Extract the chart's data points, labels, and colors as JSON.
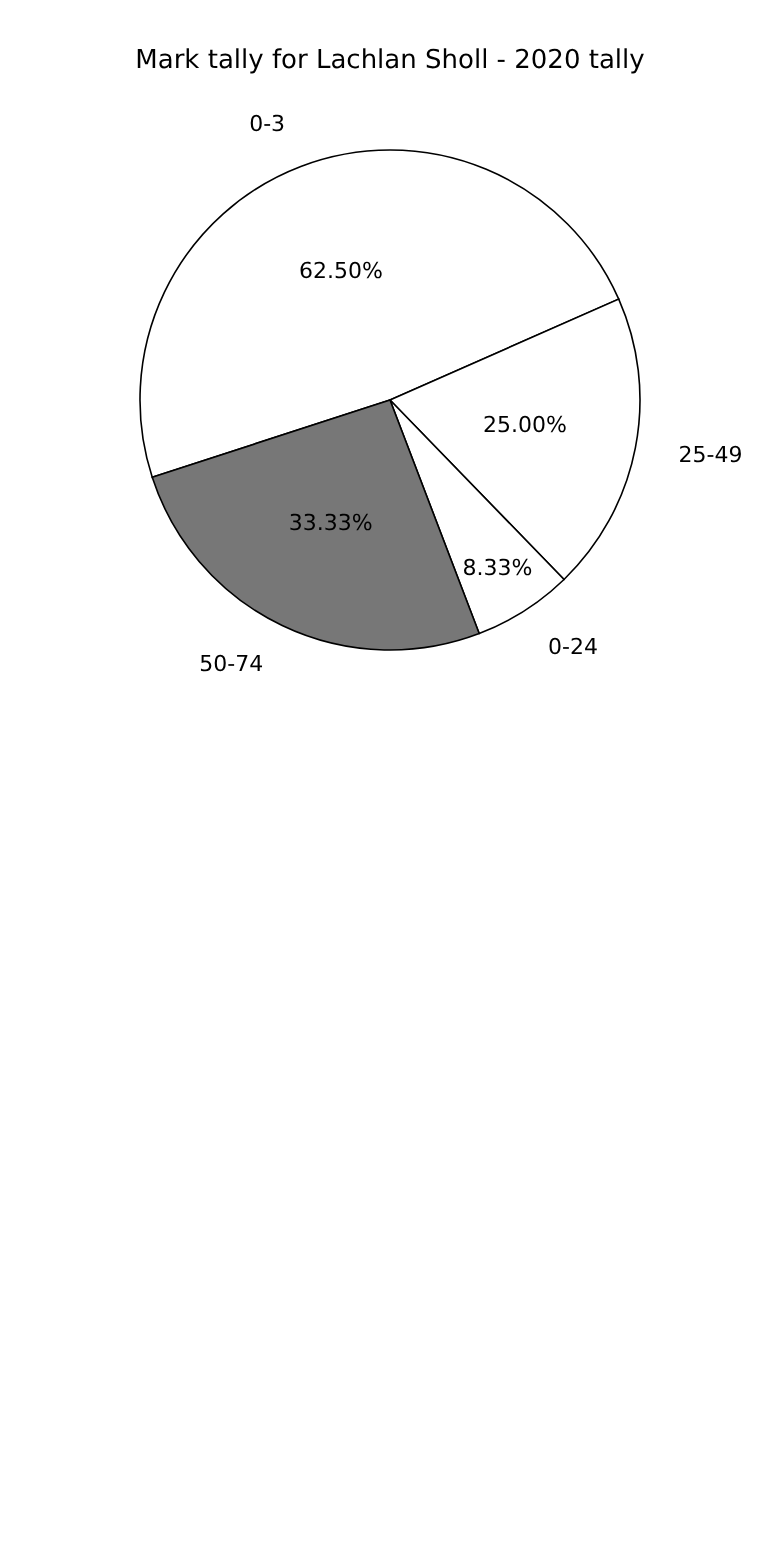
{
  "chart_data": {
    "type": "pie",
    "title": "Mark tally for Lachlan Sholl - 2020 tally",
    "categories": [
      "0-3",
      "25-49",
      "0-24",
      "50-74"
    ],
    "values": [
      62.5,
      25,
      8.33,
      33.33
    ],
    "value_labels": [
      "62.50%",
      "25.00%",
      "8.33%",
      "33.33%"
    ],
    "colors": [
      "#ffffff",
      "#ffffff",
      "#ffffff",
      "#777777"
    ]
  }
}
